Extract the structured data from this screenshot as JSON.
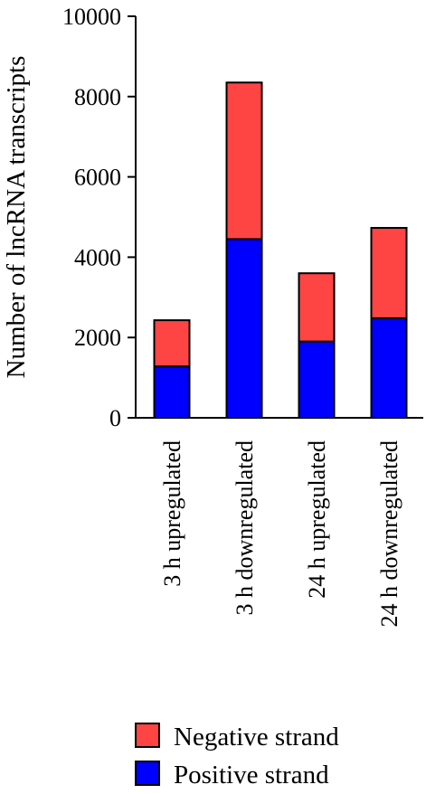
{
  "chart_data": {
    "type": "bar",
    "stacked": true,
    "categories": [
      "3 h upregulated",
      "3 h downregulated",
      "24 h upregulated",
      "24 h downregulated"
    ],
    "series": [
      {
        "name": "Positive strand",
        "color": "#0000ff",
        "values": [
          1280,
          4450,
          1900,
          2480
        ]
      },
      {
        "name": "Negative strand",
        "color": "#ff4444",
        "values": [
          1150,
          3900,
          1700,
          2250
        ]
      }
    ],
    "ylabel": "Number of lncRNA transcripts",
    "xlabel": "",
    "ylim": [
      0,
      10000
    ],
    "yticks": [
      "0",
      "2000",
      "4000",
      "6000",
      "8000",
      "10000"
    ],
    "legend_position": "bottom",
    "legend_order": [
      "Negative strand",
      "Positive strand"
    ]
  }
}
